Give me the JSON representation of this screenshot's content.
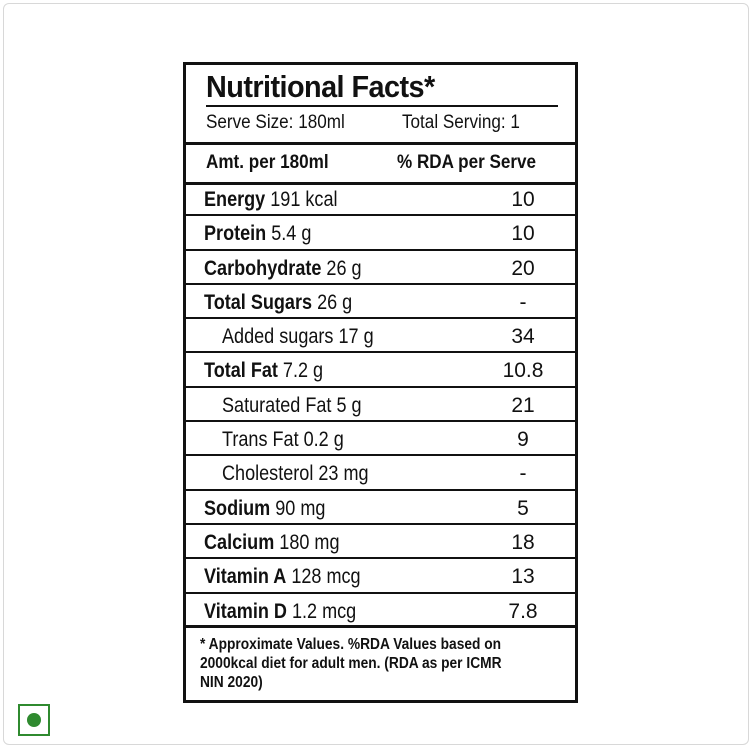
{
  "label": {
    "title": "Nutritional Facts*",
    "serve_size": "Serve Size: 180ml",
    "total_serving": "Total Serving: 1",
    "col_amount": "Amt. per 180ml",
    "col_rda": "% RDA per Serve",
    "rows": [
      {
        "name": "Energy",
        "amount": " 191 kcal",
        "rda": "10",
        "indent": false
      },
      {
        "name": "Protein",
        "amount": " 5.4 g",
        "rda": "10",
        "indent": false
      },
      {
        "name": "Carbohydrate",
        "amount": " 26 g",
        "rda": "20",
        "indent": false
      },
      {
        "name": "Total Sugars",
        "amount": " 26 g",
        "rda": "-",
        "indent": false
      },
      {
        "name": "",
        "amount": "Added sugars 17 g",
        "rda": "34",
        "indent": true
      },
      {
        "name": "Total Fat",
        "amount": " 7.2 g",
        "rda": "10.8",
        "indent": false
      },
      {
        "name": "",
        "amount": "Saturated Fat 5 g",
        "rda": "21",
        "indent": true
      },
      {
        "name": "",
        "amount": "Trans Fat 0.2 g",
        "rda": "9",
        "indent": true
      },
      {
        "name": "",
        "amount": "Cholesterol 23 mg",
        "rda": "-",
        "indent": true
      },
      {
        "name": "Sodium",
        "amount": " 90 mg",
        "rda": "5",
        "indent": false
      },
      {
        "name": "Calcium",
        "amount": " 180 mg",
        "rda": "18",
        "indent": false
      },
      {
        "name": "Vitamin A",
        "amount": " 128 mcg",
        "rda": "13",
        "indent": false
      },
      {
        "name": "Vitamin D",
        "amount": " 1.2 mcg",
        "rda": "7.8",
        "indent": false
      }
    ],
    "footnote_lines": [
      "* Approximate Values. %RDA Values based on",
      "2000kcal diet for adult men. (RDA as per ICMR",
      "NIN 2020)"
    ]
  },
  "badge": {
    "icon": "veg-mark-icon",
    "color": "#2f8a2f"
  }
}
